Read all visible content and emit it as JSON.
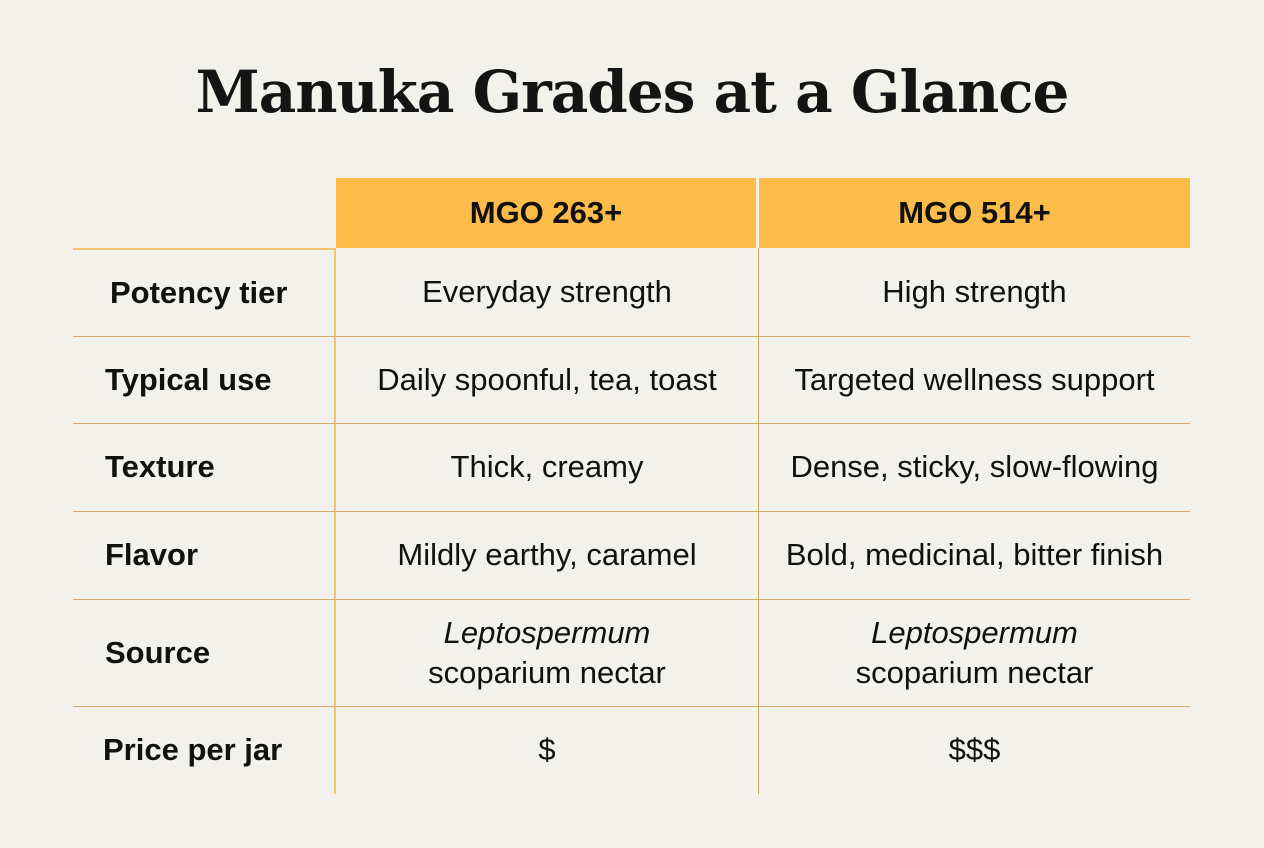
{
  "title": "Manuka Grades at a Glance",
  "columns": [
    "MGO 263+",
    "MGO 514+"
  ],
  "rows": [
    {
      "label": "Potency tier",
      "values": [
        "Everyday strength",
        "High strength"
      ]
    },
    {
      "label": "Typical use",
      "values": [
        "Daily spoonful, tea, toast",
        "Targeted wellness support"
      ]
    },
    {
      "label": "Texture",
      "values": [
        "Thick, creamy",
        "Dense, sticky, slow-flowing"
      ]
    },
    {
      "label": "Flavor",
      "values": [
        "Mildly earthy, caramel",
        "Bold, medicinal, bitter finish"
      ]
    },
    {
      "label": "Source",
      "values": [
        {
          "genus": "Leptospermum",
          "rest": "scoparium nectar"
        },
        {
          "genus": "Leptospermum",
          "rest": "scoparium nectar"
        }
      ]
    },
    {
      "label": "Price per jar",
      "values": [
        "$",
        "$$$"
      ]
    }
  ],
  "colors": {
    "header": "#fbbc4a",
    "background": "#f2f1ec",
    "rule": "#d4ad6d"
  }
}
